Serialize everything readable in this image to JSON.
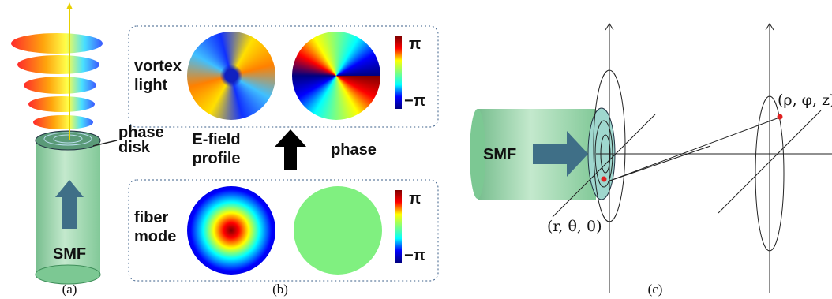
{
  "panel_a": {
    "disk_label": [
      "phase",
      "disk"
    ],
    "fiber": "SMF",
    "caption": "(a)"
  },
  "panel_b": {
    "top_label": [
      "vortex",
      "light"
    ],
    "middle_left": [
      "E-field",
      "profile"
    ],
    "middle_right": "phase",
    "bottom_label": [
      "fiber",
      "mode"
    ],
    "top_colorbar": [
      "π",
      "−π"
    ],
    "bottom_colorbar": [
      "π",
      "−π"
    ],
    "caption": "(b)"
  },
  "panel_c": {
    "fiber": "SMF",
    "source_point": "(r, θ, 0)",
    "target_point": "(ρ, φ, z)",
    "caption": "(c)"
  }
}
